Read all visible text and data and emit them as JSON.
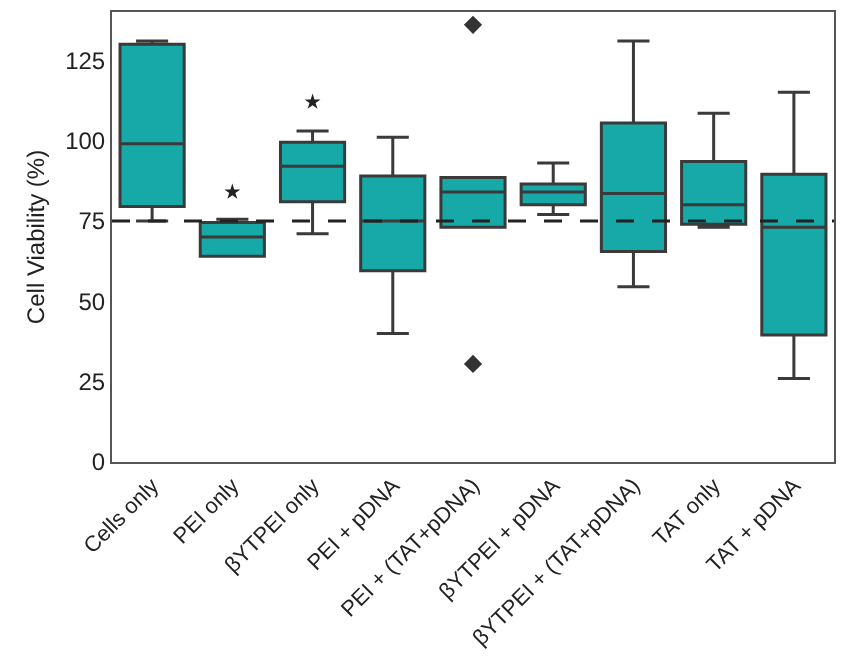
{
  "chart_data": {
    "type": "box",
    "ylabel": "Cell Viability (%)",
    "color": "#17a8a8",
    "categories": [
      "Cells only",
      "PEI only",
      "βYTPEI only",
      "PEI + pDNA",
      "PEI + (TAT+pDNA)",
      "βYTPEI + pDNA",
      "βYTPEI + (TAT+pDNA)",
      "TAT only",
      "TAT + pDNA"
    ],
    "boxes": [
      {
        "low": 75,
        "q1": 79.5,
        "median": 99,
        "q3": 130,
        "high": 131
      },
      {
        "low": 64,
        "q1": 64,
        "median": 70,
        "q3": 74.5,
        "high": 75.5
      },
      {
        "low": 71,
        "q1": 81,
        "median": 92,
        "q3": 99.5,
        "high": 103
      },
      {
        "low": 40,
        "q1": 59.5,
        "median": 75,
        "q3": 89,
        "high": 101
      },
      {
        "low": 73,
        "q1": 73,
        "median": 84,
        "q3": 88.5,
        "high": 88.5,
        "outliers": [
          136,
          30.5
        ]
      },
      {
        "low": 77,
        "q1": 80,
        "median": 84,
        "q3": 86.5,
        "high": 93
      },
      {
        "low": 54.5,
        "q1": 65.5,
        "median": 83.5,
        "q3": 105.5,
        "high": 131
      },
      {
        "low": 73,
        "q1": 74,
        "median": 80,
        "q3": 93.5,
        "high": 108.5
      },
      {
        "low": 26,
        "q1": 39.5,
        "median": 73,
        "q3": 89.5,
        "high": 115
      }
    ],
    "ylim": [
      0,
      140
    ],
    "yticks": [
      0,
      25,
      50,
      75,
      100,
      125
    ],
    "grid": false,
    "ref_lines": [
      {
        "axis": "y",
        "value": 75,
        "line_style": "dashed"
      }
    ],
    "series": [
      {
        "type": "scatter",
        "x": [
          "PEI only",
          "βYTPEI only"
        ],
        "values": [
          84,
          112
        ],
        "marker": "star",
        "color": "#222222"
      }
    ]
  }
}
